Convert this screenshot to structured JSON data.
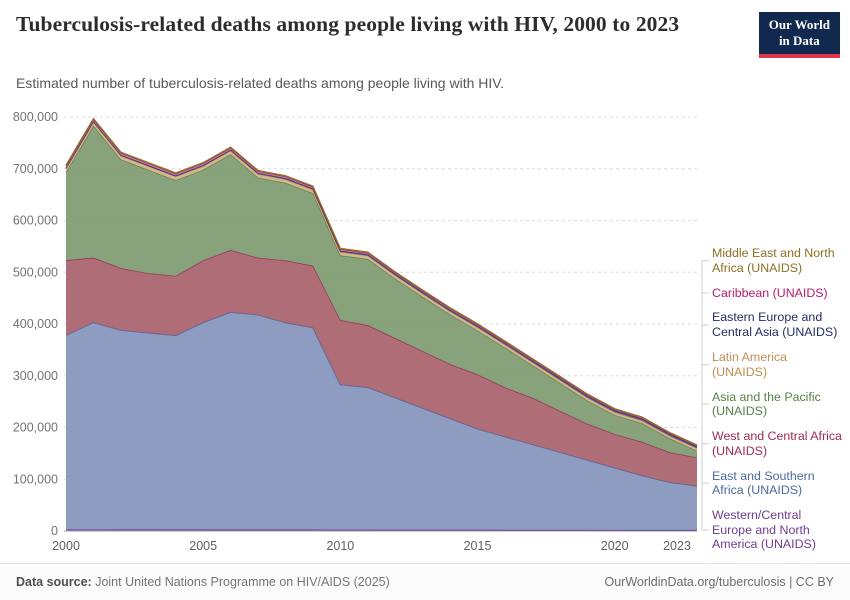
{
  "header": {
    "title": "Tuberculosis-related deaths among people living with HIV, 2000 to 2023",
    "subtitle": "Estimated number of tuberculosis-related deaths among people living with HIV.",
    "logo_line1": "Our World",
    "logo_line2": "in Data",
    "logo_bg_color": "#12294F",
    "logo_accent_color": "#E0344A"
  },
  "chart_data": {
    "type": "area",
    "stacked": true,
    "title": "Tuberculosis-related deaths among people living with HIV, 2000 to 2023",
    "xlabel": "",
    "ylabel": "",
    "x": [
      2000,
      2001,
      2002,
      2003,
      2004,
      2005,
      2006,
      2007,
      2008,
      2009,
      2010,
      2011,
      2012,
      2013,
      2014,
      2015,
      2016,
      2017,
      2018,
      2019,
      2020,
      2021,
      2022,
      2023
    ],
    "xlim": [
      2000,
      2023
    ],
    "ylim": [
      0,
      800000
    ],
    "yticks": [
      0,
      100000,
      200000,
      300000,
      400000,
      500000,
      600000,
      700000,
      800000
    ],
    "xticks": [
      2000,
      2005,
      2010,
      2015,
      2020,
      2023
    ],
    "grid": "horizontal-dashed",
    "legend_position": "right",
    "stack_order": "bottom-to-top",
    "series": [
      {
        "name": "Western/Central Europe and North America (UNAIDS)",
        "fill": "#9070ab",
        "stroke": "#6d3e91",
        "values": [
          3000,
          3000,
          2900,
          2900,
          2800,
          2800,
          2700,
          2700,
          2600,
          2600,
          2500,
          2500,
          2400,
          2400,
          2300,
          2300,
          2200,
          2200,
          2100,
          2100,
          2000,
          2000,
          1900,
          1900
        ]
      },
      {
        "name": "East and Southern Africa (UNAIDS)",
        "fill": "#8494bd",
        "stroke": "#4c6ba0",
        "values": [
          375000,
          400000,
          385000,
          380000,
          375000,
          400000,
          420000,
          415000,
          400000,
          390000,
          280000,
          275000,
          255000,
          235000,
          215000,
          195000,
          180000,
          165000,
          150000,
          135000,
          120000,
          105000,
          92000,
          85000
        ]
      },
      {
        "name": "West and Central Africa (UNAIDS)",
        "fill": "#a8616d",
        "stroke": "#9e2a55",
        "values": [
          145000,
          125000,
          120000,
          115000,
          115000,
          120000,
          120000,
          110000,
          120000,
          120000,
          125000,
          120000,
          115000,
          110000,
          105000,
          105000,
          95000,
          90000,
          80000,
          70000,
          65000,
          65000,
          58000,
          55000
        ]
      },
      {
        "name": "Asia and the Pacific (UNAIDS)",
        "fill": "#7e9a70",
        "stroke": "#588144",
        "values": [
          170000,
          255000,
          210000,
          200000,
          185000,
          175000,
          185000,
          155000,
          150000,
          140000,
          125000,
          128000,
          115000,
          105000,
          96000,
          85000,
          77000,
          63000,
          54000,
          45000,
          37000,
          36000,
          27000,
          13000
        ]
      },
      {
        "name": "Latin America (UNAIDS)",
        "fill": "#d0b287",
        "stroke": "#bf8e51",
        "values": [
          7000,
          7000,
          7000,
          7000,
          7000,
          7000,
          7000,
          6900,
          6800,
          6700,
          6600,
          6500,
          6400,
          6300,
          6200,
          6100,
          6000,
          5900,
          5800,
          5600,
          5400,
          5200,
          5000,
          4800
        ]
      },
      {
        "name": "Eastern Europe and Central Asia (UNAIDS)",
        "fill": "#4d5890",
        "stroke": "#252d67",
        "values": [
          1500,
          1600,
          1700,
          1800,
          1900,
          2000,
          2100,
          2200,
          2300,
          2400,
          2500,
          2600,
          2700,
          2800,
          2900,
          3000,
          3100,
          3200,
          3300,
          3400,
          3500,
          3500,
          3500,
          3500
        ]
      },
      {
        "name": "Caribbean (UNAIDS)",
        "fill": "#c77ba8",
        "stroke": "#b91d6e",
        "values": [
          4000,
          4000,
          3900,
          3800,
          3700,
          3600,
          3500,
          3400,
          3300,
          3200,
          3000,
          2900,
          2800,
          2700,
          2600,
          2500,
          2400,
          2300,
          2200,
          2000,
          1800,
          1600,
          1400,
          1300
        ]
      },
      {
        "name": "Middle East and North Africa (UNAIDS)",
        "fill": "#ab9855",
        "stroke": "#8c7120",
        "values": [
          1500,
          1500,
          1500,
          1500,
          1500,
          1500,
          1500,
          1500,
          1500,
          1500,
          1500,
          1500,
          1500,
          1500,
          1500,
          1500,
          1500,
          1600,
          1600,
          1700,
          1700,
          1800,
          1800,
          1800
        ]
      }
    ]
  },
  "footer": {
    "datasource_label": "Data source:",
    "datasource_text": " Joint United Nations Programme on HIV/AIDS (2025)",
    "link": "OurWorldinData.org/tuberculosis | CC BY"
  }
}
